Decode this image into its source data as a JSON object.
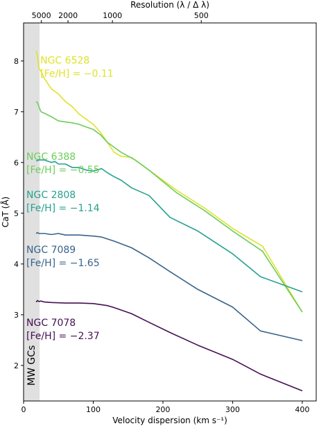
{
  "chart_data": {
    "type": "line",
    "xlabel": "Velocity dispersion (km s⁻¹)",
    "ylabel": "CaT (Å)",
    "top_xlabel": "Resolution (λ / Δ λ)",
    "xlim": [
      0,
      420
    ],
    "ylim": [
      1.3,
      8.75
    ],
    "x_ticks": [
      0,
      100,
      200,
      300,
      400
    ],
    "y_ticks": [
      2,
      3,
      4,
      5,
      6,
      7,
      8
    ],
    "top_ticks": [
      {
        "label": "5000",
        "x": 25.5
      },
      {
        "label": "2000",
        "x": 63.8
      },
      {
        "label": "1000",
        "x": 127.5
      },
      {
        "label": "500",
        "x": 255
      }
    ],
    "shaded_region": {
      "x": [
        0,
        23
      ],
      "label": "MW GCs",
      "color": "#e0e0e0"
    },
    "grid": false,
    "series": [
      {
        "name": "NGC 6528",
        "feh": "[Fe/H] = −0.11",
        "color": "#dfe22a",
        "x": [
          18,
          20,
          22,
          25,
          30,
          40,
          50,
          60,
          70,
          80,
          90,
          100,
          110,
          120,
          130,
          140,
          155,
          180,
          220,
          260,
          300,
          343,
          400
        ],
        "y": [
          8.2,
          8.1,
          7.85,
          7.8,
          7.65,
          7.45,
          7.35,
          7.2,
          7.1,
          6.95,
          6.85,
          6.75,
          6.6,
          6.4,
          6.2,
          6.12,
          6.1,
          5.85,
          5.45,
          5.1,
          4.7,
          4.35,
          3.05
        ],
        "label_pos": [
          24,
          7.95
        ]
      },
      {
        "name": "NGC 6388",
        "feh": "[Fe/H] = −0.55",
        "color": "#6ccd59",
        "x": [
          18,
          20,
          22,
          25,
          30,
          40,
          50,
          60,
          70,
          80,
          90,
          100,
          110,
          120,
          130,
          140,
          160,
          180,
          220,
          260,
          300,
          343,
          400
        ],
        "y": [
          7.2,
          7.18,
          7.1,
          7.0,
          6.97,
          6.9,
          6.82,
          6.8,
          6.78,
          6.75,
          6.7,
          6.65,
          6.55,
          6.4,
          6.3,
          6.2,
          6.05,
          5.85,
          5.4,
          5.05,
          4.65,
          4.25,
          3.05
        ],
        "label_pos": [
          4,
          6.05
        ]
      },
      {
        "name": "NGC 2808",
        "feh": "[Fe/H] = −1.14",
        "color": "#25a18e",
        "x": [
          18,
          22,
          30,
          40,
          45,
          50,
          60,
          70,
          80,
          90,
          100,
          112,
          120,
          130,
          140,
          155,
          180,
          210,
          250,
          300,
          340,
          400
        ],
        "y": [
          6.03,
          6.05,
          6.05,
          6.0,
          6.02,
          5.97,
          5.97,
          5.9,
          5.9,
          5.85,
          5.83,
          5.88,
          5.8,
          5.72,
          5.65,
          5.5,
          5.35,
          4.92,
          4.65,
          4.2,
          3.75,
          3.45
        ],
        "label_pos": [
          4,
          5.3
        ]
      },
      {
        "name": "NGC 7089",
        "feh": "[Fe/H] = −1.65",
        "color": "#37638a",
        "x": [
          18,
          20,
          22,
          30,
          40,
          50,
          60,
          80,
          100,
          112,
          130,
          155,
          180,
          210,
          250,
          300,
          340,
          400
        ],
        "y": [
          4.6,
          4.62,
          4.6,
          4.6,
          4.58,
          4.6,
          4.57,
          4.57,
          4.55,
          4.53,
          4.45,
          4.32,
          4.12,
          3.85,
          3.5,
          3.15,
          2.68,
          2.49
        ],
        "label_pos": [
          4,
          4.22
        ]
      },
      {
        "name": "NGC 7078",
        "feh": "[Fe/H] = −2.37",
        "color": "#440f54",
        "x": [
          18,
          20,
          22,
          25,
          30,
          40,
          60,
          80,
          100,
          120,
          130,
          155,
          180,
          210,
          250,
          300,
          340,
          400
        ],
        "y": [
          3.25,
          3.28,
          3.26,
          3.27,
          3.25,
          3.24,
          3.23,
          3.23,
          3.22,
          3.18,
          3.14,
          3.02,
          2.85,
          2.65,
          2.4,
          2.12,
          1.83,
          1.5
        ],
        "label_pos": [
          4,
          2.78
        ]
      }
    ]
  }
}
